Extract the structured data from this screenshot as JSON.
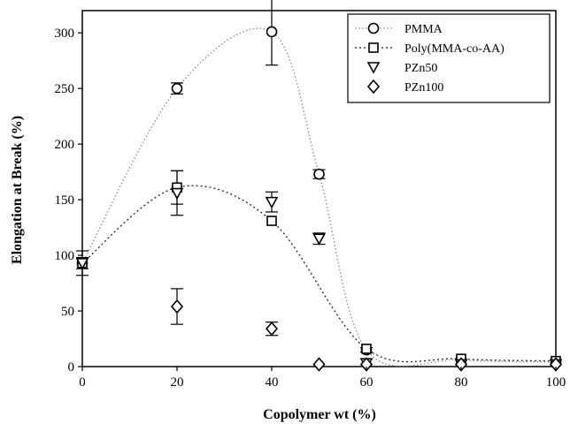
{
  "chart_data": {
    "type": "scatter",
    "xlabel": "Copolymer wt (%)",
    "ylabel": "Elongation at Break (%)",
    "xlim": [
      0,
      100
    ],
    "ylim": [
      0,
      320
    ],
    "xticks": [
      0,
      20,
      40,
      60,
      80,
      100
    ],
    "yticks": [
      0,
      50,
      100,
      150,
      200,
      250,
      300
    ],
    "grid": false,
    "legend_position": "top-right",
    "series": [
      {
        "name": "PMMA",
        "marker": "circle",
        "x": [
          0,
          20,
          40,
          50,
          60,
          80,
          100
        ],
        "y": [
          93,
          250,
          301,
          173,
          15,
          6,
          4
        ],
        "err": [
          5,
          5,
          30,
          4,
          2,
          0,
          0
        ],
        "trendline": true
      },
      {
        "name": "Poly(MMA-co-AA)",
        "marker": "square",
        "x": [
          0,
          20,
          40,
          60,
          80,
          100
        ],
        "y": [
          93,
          161,
          131,
          16,
          7,
          5
        ],
        "err": [
          11,
          15,
          0,
          0,
          0,
          0
        ],
        "trendline": true
      },
      {
        "name": "PZn50",
        "marker": "triangle-down",
        "x": [
          0,
          20,
          40,
          50,
          60,
          80,
          100
        ],
        "y": [
          93,
          156,
          148,
          115,
          3,
          2,
          2
        ],
        "err": [
          0,
          20,
          9,
          5,
          0,
          0,
          0
        ],
        "trendline": false
      },
      {
        "name": "PZn100",
        "marker": "diamond",
        "x": [
          20,
          40,
          50,
          60,
          80,
          100
        ],
        "y": [
          54,
          34,
          2,
          2,
          2,
          2
        ],
        "err": [
          16,
          6,
          0,
          0,
          0,
          0
        ],
        "trendline": false
      }
    ]
  }
}
